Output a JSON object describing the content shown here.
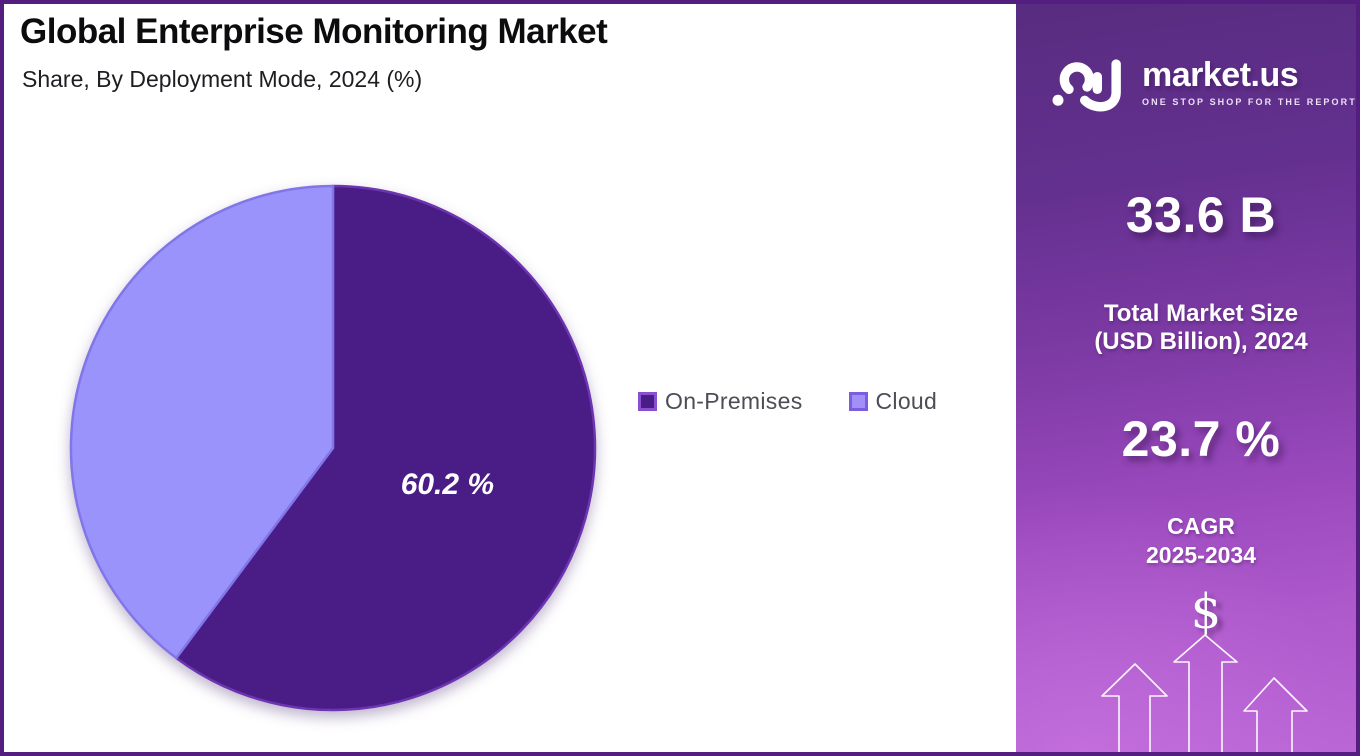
{
  "frame": {
    "border_color": "#541e81",
    "background": "#ffffff"
  },
  "header": {
    "title": "Global Enterprise Monitoring Market",
    "subtitle": "Share, By Deployment Mode, 2024 (%)"
  },
  "chart_data": {
    "type": "pie",
    "title": "Global Enterprise Monitoring Market",
    "subtitle": "Share, By Deployment Mode, 2024 (%)",
    "categories": [
      "On-Premises",
      "Cloud"
    ],
    "values": [
      60.2,
      39.8
    ],
    "unit": "%",
    "colors": [
      "#4a1d86",
      "#9a93fc"
    ],
    "stroke_colors": [
      "#6d34b2",
      "#8176e8"
    ],
    "data_labels": [
      "60.2 %",
      ""
    ],
    "label_color": "#ffffff",
    "start_angle_deg": 0,
    "direction": "clockwise",
    "legend_position": "right"
  },
  "legend": {
    "text_color": "#4d4d55",
    "items": [
      {
        "label": "On-Premises",
        "color": "#4a1d86",
        "border": "#8a4fd0"
      },
      {
        "label": "Cloud",
        "color": "#a28ff7",
        "border": "#7c5ce0"
      }
    ]
  },
  "sidebar": {
    "brand": {
      "name": "market.us",
      "tagline": "ONE STOP SHOP FOR THE REPORTS"
    },
    "stats": [
      {
        "value": "33.6 B",
        "label_lines": [
          "Total Market Size",
          "(USD Billion), 2024"
        ]
      },
      {
        "value": "23.7 %",
        "label_lines": [
          "CAGR",
          "2025-2034"
        ]
      }
    ],
    "dollar_symbol": "$",
    "gradient_top": "#582c80",
    "gradient_bottom": "#bb66d6"
  }
}
